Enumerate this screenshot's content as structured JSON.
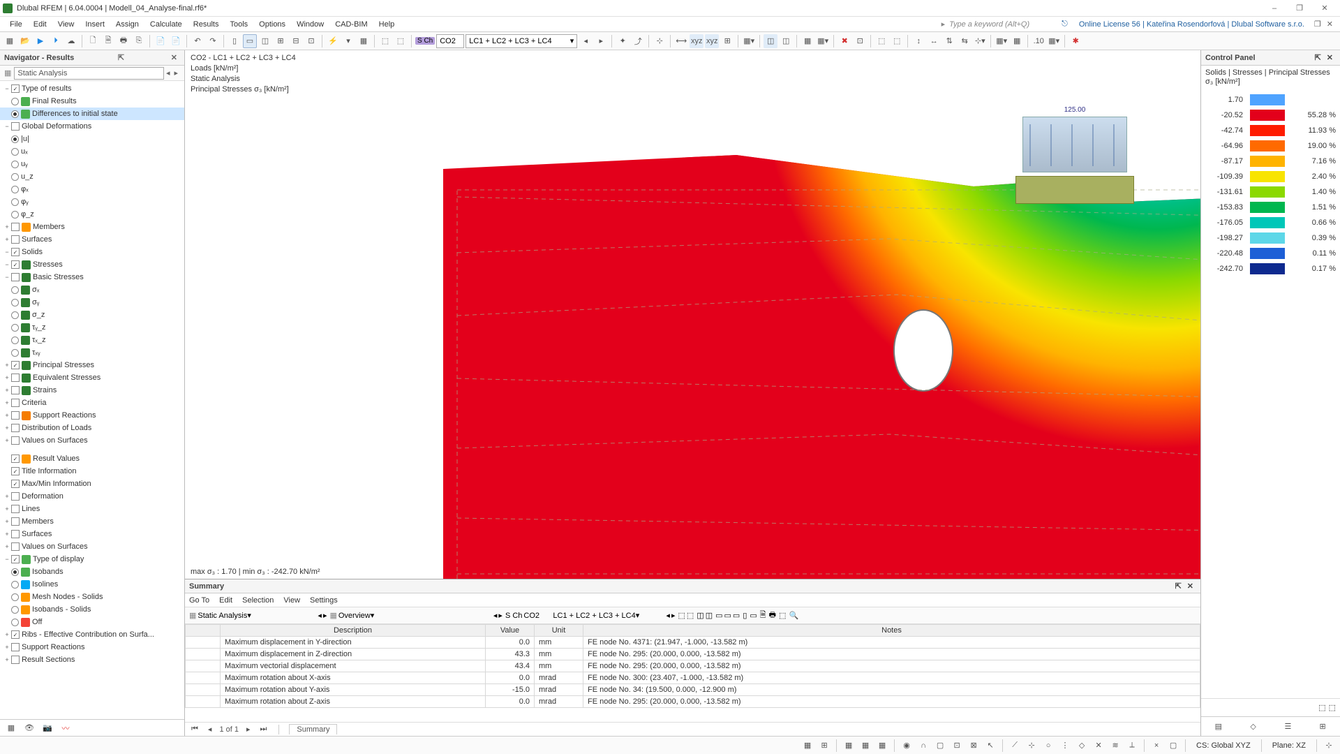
{
  "titlebar": {
    "app": "Dlubal RFEM | 6.04.0004 | Modell_04_Analyse-final.rf6*"
  },
  "window_controls": {
    "min": "–",
    "max": "❐",
    "close": "✕"
  },
  "menus": [
    "File",
    "Edit",
    "View",
    "Insert",
    "Assign",
    "Calculate",
    "Results",
    "Tools",
    "Options",
    "Window",
    "CAD-BIM",
    "Help"
  ],
  "menubar": {
    "search_hint": "Type a keyword (Alt+Q)",
    "license": "Online License 56 | Kateřina Rosendorfová | Dlubal Software s.r.o."
  },
  "toolbar1": {
    "combo1": "CO2",
    "combo2": "LC1 + LC2 + LC3 + LC4",
    "sch": "S Ch"
  },
  "navigator": {
    "title": "Navigator - Results",
    "combo": "Static Analysis",
    "tree": [
      {
        "ind": 1,
        "tw": "−",
        "cb": true,
        "lbl": "Type of results"
      },
      {
        "ind": 2,
        "rb": false,
        "ic": "#4caf50",
        "lbl": "Final Results"
      },
      {
        "ind": 2,
        "rb": true,
        "ic": "#4caf50",
        "lbl": "Differences to initial state",
        "sel": true
      },
      {
        "ind": 1,
        "tw": "−",
        "cb": false,
        "lbl": "Global Deformations"
      },
      {
        "ind": 2,
        "rb": true,
        "lbl": "|u|"
      },
      {
        "ind": 2,
        "rb": false,
        "lbl": "uₓ"
      },
      {
        "ind": 2,
        "rb": false,
        "lbl": "uᵧ"
      },
      {
        "ind": 2,
        "rb": false,
        "lbl": "u_z"
      },
      {
        "ind": 2,
        "rb": false,
        "lbl": "φₓ"
      },
      {
        "ind": 2,
        "rb": false,
        "lbl": "φᵧ"
      },
      {
        "ind": 2,
        "rb": false,
        "lbl": "φ_z"
      },
      {
        "ind": 1,
        "tw": "+",
        "cb": false,
        "ic": "#ff9800",
        "lbl": "Members"
      },
      {
        "ind": 1,
        "tw": "+",
        "cb": false,
        "lbl": "Surfaces"
      },
      {
        "ind": 1,
        "tw": "−",
        "cb": true,
        "lbl": "Solids"
      },
      {
        "ind": 2,
        "tw": "−",
        "cb": true,
        "ic": "#2e7d32",
        "lbl": "Stresses"
      },
      {
        "ind": 3,
        "tw": "−",
        "cb": false,
        "ic": "#2e7d32",
        "lbl": "Basic Stresses"
      },
      {
        "ind": 4,
        "rb": false,
        "ic": "#2e7d32",
        "lbl": "σₓ"
      },
      {
        "ind": 4,
        "rb": false,
        "ic": "#2e7d32",
        "lbl": "σᵧ"
      },
      {
        "ind": 4,
        "rb": false,
        "ic": "#2e7d32",
        "lbl": "σ_z"
      },
      {
        "ind": 4,
        "rb": false,
        "ic": "#2e7d32",
        "lbl": "τᵧ_z"
      },
      {
        "ind": 4,
        "rb": false,
        "ic": "#2e7d32",
        "lbl": "τₓ_z"
      },
      {
        "ind": 4,
        "rb": false,
        "ic": "#2e7d32",
        "lbl": "τₓᵧ"
      },
      {
        "ind": 3,
        "tw": "+",
        "cb": true,
        "ic": "#2e7d32",
        "lbl": "Principal Stresses"
      },
      {
        "ind": 3,
        "tw": "+",
        "cb": false,
        "ic": "#2e7d32",
        "lbl": "Equivalent Stresses"
      },
      {
        "ind": 2,
        "tw": "+",
        "cb": false,
        "ic": "#2e7d32",
        "lbl": "Strains"
      },
      {
        "ind": 1,
        "tw": "+",
        "cb": false,
        "lbl": "Criteria"
      },
      {
        "ind": 1,
        "tw": "+",
        "cb": false,
        "ic": "#f57c00",
        "lbl": "Support Reactions"
      },
      {
        "ind": 1,
        "tw": "+",
        "cb": false,
        "lbl": "Distribution of Loads"
      },
      {
        "ind": 1,
        "tw": "+",
        "cb": false,
        "lbl": "Values on Surfaces"
      },
      {
        "ind": 0,
        "sep": true
      },
      {
        "ind": 1,
        "tw": " ",
        "cb": true,
        "ic": "#ff9800",
        "lbl": "Result Values"
      },
      {
        "ind": 1,
        "tw": " ",
        "cb": true,
        "lbl": "Title Information"
      },
      {
        "ind": 1,
        "tw": " ",
        "cb": true,
        "lbl": "Max/Min Information"
      },
      {
        "ind": 1,
        "tw": "+",
        "cb": false,
        "lbl": "Deformation"
      },
      {
        "ind": 1,
        "tw": "+",
        "cb": false,
        "lbl": "Lines"
      },
      {
        "ind": 1,
        "tw": "+",
        "cb": false,
        "lbl": "Members"
      },
      {
        "ind": 1,
        "tw": "+",
        "cb": false,
        "lbl": "Surfaces"
      },
      {
        "ind": 1,
        "tw": "+",
        "cb": false,
        "lbl": "Values on Surfaces"
      },
      {
        "ind": 1,
        "tw": "−",
        "cb": true,
        "ic": "#4caf50",
        "lbl": "Type of display"
      },
      {
        "ind": 2,
        "rb": true,
        "ic": "#4caf50",
        "lbl": "Isobands"
      },
      {
        "ind": 2,
        "rb": false,
        "ic": "#03a9f4",
        "lbl": "Isolines"
      },
      {
        "ind": 2,
        "rb": false,
        "ic": "#ff9800",
        "lbl": "Mesh Nodes - Solids"
      },
      {
        "ind": 2,
        "rb": false,
        "ic": "#ff9800",
        "lbl": "Isobands - Solids"
      },
      {
        "ind": 2,
        "rb": false,
        "ic": "#f44336",
        "lbl": "Off"
      },
      {
        "ind": 1,
        "tw": "+",
        "cb": true,
        "lbl": "Ribs - Effective Contribution on Surfa..."
      },
      {
        "ind": 1,
        "tw": "+",
        "cb": false,
        "lbl": "Support Reactions"
      },
      {
        "ind": 1,
        "tw": "+",
        "cb": false,
        "lbl": "Result Sections"
      }
    ]
  },
  "viewport": {
    "line1": "CO2 - LC1 + LC2 + LC3 + LC4",
    "line2": "Loads [kN/m²]",
    "line3": "Static Analysis",
    "line4": "Principal Stresses σ₃ [kN/m²]",
    "minmax": "max σ₃ : 1.70 | min σ₃ : -242.70 kN/m²",
    "load_value": "125.00",
    "fea": {
      "colors": {
        "bg": "#ffffff",
        "red": "#e3001b",
        "orange": "#ff6a00",
        "yellow": "#f8e400",
        "lime": "#8bd900",
        "green": "#00b74f",
        "cyan": "#00c7b8",
        "lcyan": "#5dd7e8",
        "lblue": "#3aa2e8",
        "blue": "#1d5fd6",
        "dblue": "#0e2a8f"
      }
    }
  },
  "summary": {
    "title": "Summary",
    "menus": [
      "Go To",
      "Edit",
      "Selection",
      "View",
      "Settings"
    ],
    "combo1": "Static Analysis",
    "combo2": "Overview",
    "sch": "S Ch",
    "combo3": "CO2",
    "combo4": "LC1 + LC2 + LC3 + LC4",
    "cols": [
      "",
      "Description",
      "Value",
      "Unit",
      "Notes"
    ],
    "rows": [
      [
        "",
        "Maximum displacement in Y-direction",
        "0.0",
        "mm",
        "FE node No. 4371: (21.947, -1.000, -13.582 m)"
      ],
      [
        "",
        "Maximum displacement in Z-direction",
        "43.3",
        "mm",
        "FE node No. 295: (20.000, 0.000, -13.582 m)"
      ],
      [
        "",
        "Maximum vectorial displacement",
        "43.4",
        "mm",
        "FE node No. 295: (20.000, 0.000, -13.582 m)"
      ],
      [
        "",
        "Maximum rotation about X-axis",
        "0.0",
        "mrad",
        "FE node No. 300: (23.407, -1.000, -13.582 m)"
      ],
      [
        "",
        "Maximum rotation about Y-axis",
        "-15.0",
        "mrad",
        "FE node No. 34: (19.500, 0.000, -12.900 m)"
      ],
      [
        "",
        "Maximum rotation about Z-axis",
        "0.0",
        "mrad",
        "FE node No. 295: (20.000, 0.000, -13.582 m)"
      ]
    ],
    "pager": "1 of 1",
    "tab": "Summary"
  },
  "controlpanel": {
    "title": "Control Panel",
    "subtitle": "Solids | Stresses | Principal Stresses σ₃ [kN/m²]",
    "legend": [
      {
        "v": "1.70",
        "c": "#4fa3ff",
        "p": ""
      },
      {
        "v": "-20.52",
        "c": "#e3001b",
        "p": "55.28 %"
      },
      {
        "v": "-42.74",
        "c": "#ff1c00",
        "p": "11.93 %"
      },
      {
        "v": "-64.96",
        "c": "#ff6a00",
        "p": "19.00 %"
      },
      {
        "v": "-87.17",
        "c": "#ffb300",
        "p": "7.16 %"
      },
      {
        "v": "-109.39",
        "c": "#f8e400",
        "p": "2.40 %"
      },
      {
        "v": "-131.61",
        "c": "#8bd900",
        "p": "1.40 %"
      },
      {
        "v": "-153.83",
        "c": "#00b74f",
        "p": "1.51 %"
      },
      {
        "v": "-176.05",
        "c": "#00c7b8",
        "p": "0.66 %"
      },
      {
        "v": "-198.27",
        "c": "#5dd7e8",
        "p": "0.39 %"
      },
      {
        "v": "-220.48",
        "c": "#1d5fd6",
        "p": "0.11 %"
      },
      {
        "v": "-242.70",
        "c": "#0e2a8f",
        "p": "0.17 %"
      }
    ]
  },
  "statusbar": {
    "cs": "CS: Global XYZ",
    "plane": "Plane: XZ"
  }
}
